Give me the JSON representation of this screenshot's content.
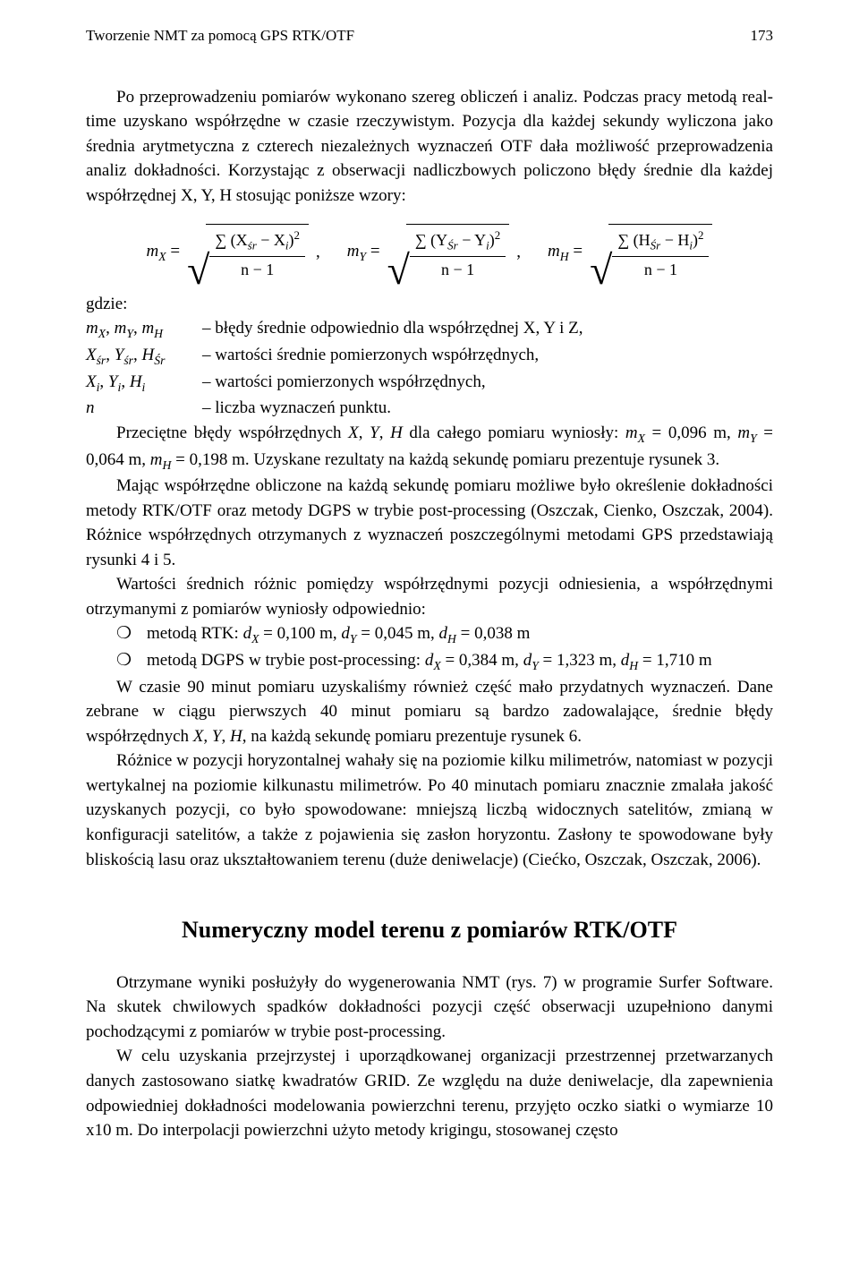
{
  "header": {
    "title": "Tworzenie NMT za pomocą GPS RTK/OTF",
    "page": "173"
  },
  "p1": "Po przeprowadzeniu pomiarów wykonano szereg obliczeń i analiz. Podczas pracy metodą real-time uzyskano współrzędne w czasie rzeczywistym. Pozycja dla każdej sekundy wyliczona jako średnia arytmetyczna z czterech niezależnych wyznaczeń OTF dała możliwość przeprowadzenia analiz dokładności. Korzystając z obserwacji nadliczbowych policzono błędy średnie dla każdej współrzędnej X, Y, H stosując poniższe wzory:",
  "formulas": {
    "mx": {
      "lhs": "m",
      "sub": "X",
      "num": "∑ (X",
      "num_sr": "śr",
      "num_mid": " − X",
      "num_i": "i",
      "num_end": ")",
      "sup": "2",
      "den1": "n − 1"
    },
    "my": {
      "lhs": "m",
      "sub": "Y",
      "num": "∑ (Y",
      "num_sr": "Śr",
      "num_mid": " − Y",
      "num_i": "i",
      "num_end": ")",
      "sup": "2",
      "den1": "n − 1"
    },
    "mh": {
      "lhs": "m",
      "sub": "H",
      "num": "∑ (H",
      "num_sr": "Śr",
      "num_mid": " − H",
      "num_i": "i",
      "num_end": ")",
      "sup": "2",
      "den1": "n − 1"
    },
    "sep": ", "
  },
  "where": {
    "head": "gdzie:",
    "rows": [
      {
        "sym_html": "<span class='it'>m<sub>X</sub></span>, <span class='it'>m<sub>Y</sub></span>, <span class='it'>m<sub>H</sub></span>",
        "desc": "– błędy średnie odpowiednio dla współrzędnej X, Y i Z,"
      },
      {
        "sym_html": "<span class='it'>X<sub>śr</sub></span>, <span class='it'>Y<sub>śr</sub></span>, <span class='it'>H<sub>Śr</sub></span>",
        "desc": "– wartości średnie pomierzonych współrzędnych,"
      },
      {
        "sym_html": "<span class='it'>X<sub>i</sub></span>, <span class='it'>Y<sub>i</sub></span>, <span class='it'>H<sub>i</sub></span>",
        "desc": "– wartości pomierzonych współrzędnych,"
      },
      {
        "sym_html": "<span class='it'>n</span>",
        "desc": "– liczba wyznaczeń punktu."
      }
    ]
  },
  "p2_html": "Przeciętne błędy współrzędnych <span class='it'>X</span>, <span class='it'>Y</span>, <span class='it'>H</span> dla całego pomiaru wyniosły: <span class='it'>m<sub>X</sub></span> = 0,096 m, <span class='it'>m<sub>Y</sub></span> = 0,064 m, <span class='it'>m<sub>H</sub></span> = 0,198 m. Uzyskane rezultaty na każdą sekundę pomiaru prezentuje rysunek 3.",
  "p3": "Mając współrzędne obliczone na każdą sekundę pomiaru możliwe było określenie dokładności metody RTK/OTF oraz metody DGPS w trybie post-processing (Oszczak, Cienko, Oszczak, 2004). Różnice współrzędnych otrzymanych z wyznaczeń poszczególnymi metodami GPS przedstawiają rysunki 4 i 5.",
  "p4": "Wartości średnich różnic pomiędzy współrzędnymi pozycji odniesienia, a współrzędnymi otrzymanymi z pomiarów wyniosły odpowiednio:",
  "li1_html": "metodą RTK: <span class='it'>d<sub>X</sub></span> = 0,100 m, <span class='it'>d<sub>Y</sub></span> = 0,045 m, <span class='it'>d<sub>H</sub></span> = 0,038 m",
  "li2_html": "metodą DGPS w trybie post-processing: <span class='it'>d<sub>X</sub></span> = 0,384 m, <span class='it'>d<sub>Y</sub></span> = 1,323 m, <span class='it'>d<sub>H</sub></span> = 1,710 m",
  "p5_html": "W czasie 90 minut pomiaru uzyskaliśmy również część mało przydatnych wyznaczeń. Dane zebrane w ciągu pierwszych 40 minut pomiaru są bardzo zadowalające, średnie błędy współrzędnych <span class='it'>X</span>, <span class='it'>Y</span>, <span class='it'>H</span>, na każdą sekundę pomiaru prezentuje rysunek 6.",
  "p6": "Różnice w pozycji horyzontalnej wahały się na poziomie kilku milimetrów, natomiast w pozycji wertykalnej na poziomie kilkunastu milimetrów. Po 40 minutach pomiaru znacznie zmalała jakość uzyskanych pozycji, co było spowodowane: mniejszą liczbą widocznych satelitów, zmianą w konfiguracji satelitów, a także z pojawienia się zasłon horyzontu. Zasłony te spowodowane były bliskością lasu oraz ukształtowaniem terenu (duże deniwelacje) (Ciećko, Oszczak, Oszczak, 2006).",
  "section": "Numeryczny model terenu z pomiarów RTK/OTF",
  "p7": "Otrzymane wyniki posłużyły do wygenerowania NMT (rys. 7) w programie Surfer Software. Na skutek chwilowych spadków dokładności pozycji część obserwacji uzupełniono danymi pochodzącymi z pomiarów w trybie post-processing.",
  "p8": "W celu uzyskania przejrzystej i uporządkowanej organizacji przestrzennej przetwarzanych danych zastosowano siatkę kwadratów GRID. Ze względu na duże deniwelacje, dla zapewnienia odpowiedniej dokładności modelowania powierzchni terenu, przyjęto oczko siatki o wymiarze 10 x10 m. Do interpolacji powierzchni użyto metody krigingu, stosowanej często",
  "bullet": "❍"
}
